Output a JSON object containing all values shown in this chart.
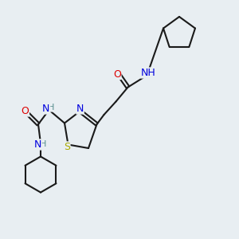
{
  "background_color": "#e8eef2",
  "fig_width": 3.0,
  "fig_height": 3.0,
  "dpi": 100,
  "bond_color": "#1a1a1a",
  "bond_lw": 1.5,
  "colors": {
    "C": "#1a1a1a",
    "N": "#0000dd",
    "O": "#dd0000",
    "S": "#aaaa00",
    "H": "#5a9090"
  },
  "font_size": 9
}
